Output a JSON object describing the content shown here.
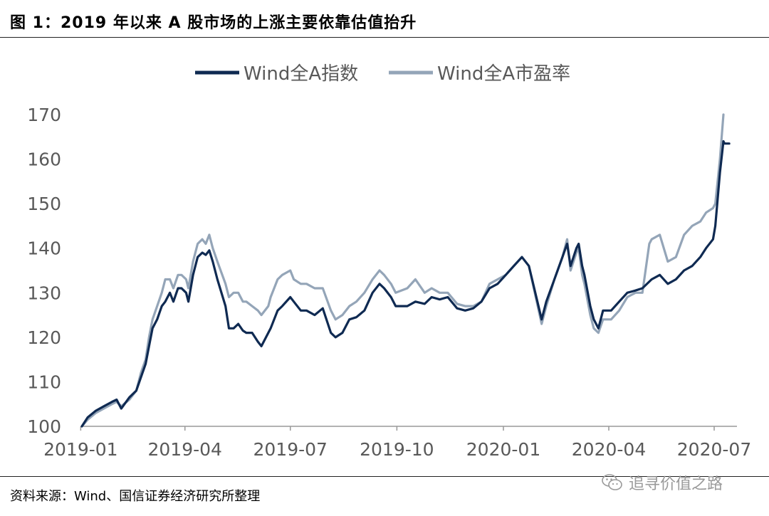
{
  "header": {
    "title": "图 1：2019 年以来 A 股市场的上涨主要依靠估值抬升"
  },
  "footer": {
    "source": "资料来源：Wind、国信证券经济研究所整理",
    "watermark": "追寻价值之路",
    "watermark_icon": "wechat-icon"
  },
  "chart_data": {
    "type": "line",
    "title": "",
    "xlabel": "",
    "ylabel": "",
    "ylim": [
      100,
      170
    ],
    "yticks": [
      "100",
      "110",
      "120",
      "130",
      "140",
      "150",
      "160",
      "170"
    ],
    "xticks": [
      "2019-01",
      "2019-04",
      "2019-07",
      "2019-10",
      "2020-01",
      "2020-04",
      "2020-07"
    ],
    "xlim": [
      "2019-01-02",
      "2020-07-15"
    ],
    "grid": false,
    "legend_position": "top",
    "colors": {
      "wind_index": "#0f2a52",
      "wind_pe": "#94a5b8"
    },
    "series": [
      {
        "name": "Wind全A指数",
        "points": [
          [
            "2019-01-02",
            100
          ],
          [
            "2019-01-07",
            102
          ],
          [
            "2019-01-14",
            103.5
          ],
          [
            "2019-01-21",
            104.5
          ],
          [
            "2019-01-28",
            105.5
          ],
          [
            "2019-02-01",
            106
          ],
          [
            "2019-02-05",
            104
          ],
          [
            "2019-02-12",
            106.5
          ],
          [
            "2019-02-18",
            108
          ],
          [
            "2019-02-22",
            111
          ],
          [
            "2019-02-26",
            114
          ],
          [
            "2019-03-01",
            118
          ],
          [
            "2019-03-04",
            122
          ],
          [
            "2019-03-08",
            124
          ],
          [
            "2019-03-12",
            127
          ],
          [
            "2019-03-15",
            128
          ],
          [
            "2019-03-19",
            130
          ],
          [
            "2019-03-22",
            128
          ],
          [
            "2019-03-26",
            131
          ],
          [
            "2019-03-29",
            131
          ],
          [
            "2019-04-02",
            130
          ],
          [
            "2019-04-04",
            128
          ],
          [
            "2019-04-08",
            134
          ],
          [
            "2019-04-12",
            138
          ],
          [
            "2019-04-16",
            139
          ],
          [
            "2019-04-19",
            138.5
          ],
          [
            "2019-04-22",
            139.5
          ],
          [
            "2019-04-25",
            137
          ],
          [
            "2019-04-29",
            133
          ],
          [
            "2019-05-06",
            127
          ],
          [
            "2019-05-09",
            122
          ],
          [
            "2019-05-13",
            122
          ],
          [
            "2019-05-17",
            123
          ],
          [
            "2019-05-21",
            121.5
          ],
          [
            "2019-05-24",
            121
          ],
          [
            "2019-05-29",
            121
          ],
          [
            "2019-06-03",
            119
          ],
          [
            "2019-06-06",
            118
          ],
          [
            "2019-06-12",
            121
          ],
          [
            "2019-06-14",
            122
          ],
          [
            "2019-06-20",
            126
          ],
          [
            "2019-06-24",
            127
          ],
          [
            "2019-07-01",
            129
          ],
          [
            "2019-07-04",
            128
          ],
          [
            "2019-07-10",
            126
          ],
          [
            "2019-07-15",
            126
          ],
          [
            "2019-07-22",
            125
          ],
          [
            "2019-07-29",
            126.5
          ],
          [
            "2019-08-05",
            121
          ],
          [
            "2019-08-09",
            120
          ],
          [
            "2019-08-15",
            121
          ],
          [
            "2019-08-21",
            124
          ],
          [
            "2019-08-27",
            124.5
          ],
          [
            "2019-09-03",
            126
          ],
          [
            "2019-09-10",
            130
          ],
          [
            "2019-09-16",
            132
          ],
          [
            "2019-09-20",
            131
          ],
          [
            "2019-09-26",
            129
          ],
          [
            "2019-09-30",
            127
          ],
          [
            "2019-10-10",
            127
          ],
          [
            "2019-10-17",
            128
          ],
          [
            "2019-10-25",
            127.5
          ],
          [
            "2019-10-31",
            129
          ],
          [
            "2019-11-07",
            128.5
          ],
          [
            "2019-11-14",
            129
          ],
          [
            "2019-11-22",
            126.5
          ],
          [
            "2019-11-29",
            126
          ],
          [
            "2019-12-06",
            126.5
          ],
          [
            "2019-12-13",
            128
          ],
          [
            "2019-12-20",
            131
          ],
          [
            "2019-12-27",
            132
          ],
          [
            "2020-01-03",
            134
          ],
          [
            "2020-01-10",
            136
          ],
          [
            "2020-01-17",
            138
          ],
          [
            "2020-01-23",
            136
          ],
          [
            "2020-02-03",
            124
          ],
          [
            "2020-02-07",
            128
          ],
          [
            "2020-02-14",
            133
          ],
          [
            "2020-02-21",
            138
          ],
          [
            "2020-02-25",
            141
          ],
          [
            "2020-02-28",
            136
          ],
          [
            "2020-03-04",
            140
          ],
          [
            "2020-03-06",
            141
          ],
          [
            "2020-03-09",
            136
          ],
          [
            "2020-03-11",
            134
          ],
          [
            "2020-03-16",
            127
          ],
          [
            "2020-03-19",
            124
          ],
          [
            "2020-03-23",
            122
          ],
          [
            "2020-03-27",
            126
          ],
          [
            "2020-04-03",
            126
          ],
          [
            "2020-04-10",
            128
          ],
          [
            "2020-04-17",
            130
          ],
          [
            "2020-04-24",
            130.5
          ],
          [
            "2020-04-30",
            131
          ],
          [
            "2020-05-08",
            133
          ],
          [
            "2020-05-15",
            134
          ],
          [
            "2020-05-22",
            132
          ],
          [
            "2020-05-29",
            133
          ],
          [
            "2020-06-05",
            135
          ],
          [
            "2020-06-12",
            136
          ],
          [
            "2020-06-19",
            138
          ],
          [
            "2020-06-24",
            140
          ],
          [
            "2020-06-30",
            142
          ],
          [
            "2020-07-02",
            145
          ],
          [
            "2020-07-06",
            157
          ],
          [
            "2020-07-09",
            164
          ],
          [
            "2020-07-10",
            163.5
          ],
          [
            "2020-07-14",
            163.5
          ]
        ]
      },
      {
        "name": "Wind全A市盈率",
        "points": [
          [
            "2019-01-02",
            100
          ],
          [
            "2019-01-07",
            101.5
          ],
          [
            "2019-01-14",
            103
          ],
          [
            "2019-01-21",
            104
          ],
          [
            "2019-01-28",
            105
          ],
          [
            "2019-02-01",
            105.5
          ],
          [
            "2019-02-05",
            104.5
          ],
          [
            "2019-02-12",
            106
          ],
          [
            "2019-02-18",
            108
          ],
          [
            "2019-02-22",
            112
          ],
          [
            "2019-02-26",
            115
          ],
          [
            "2019-03-01",
            120
          ],
          [
            "2019-03-04",
            124
          ],
          [
            "2019-03-08",
            127
          ],
          [
            "2019-03-12",
            130
          ],
          [
            "2019-03-15",
            133
          ],
          [
            "2019-03-19",
            133
          ],
          [
            "2019-03-22",
            131
          ],
          [
            "2019-03-26",
            134
          ],
          [
            "2019-03-29",
            134
          ],
          [
            "2019-04-02",
            133
          ],
          [
            "2019-04-04",
            131
          ],
          [
            "2019-04-08",
            137
          ],
          [
            "2019-04-12",
            141
          ],
          [
            "2019-04-16",
            142
          ],
          [
            "2019-04-19",
            141
          ],
          [
            "2019-04-22",
            143
          ],
          [
            "2019-04-25",
            140
          ],
          [
            "2019-04-29",
            137
          ],
          [
            "2019-05-06",
            132
          ],
          [
            "2019-05-09",
            129
          ],
          [
            "2019-05-13",
            130
          ],
          [
            "2019-05-17",
            130
          ],
          [
            "2019-05-21",
            128
          ],
          [
            "2019-05-24",
            128
          ],
          [
            "2019-05-29",
            127
          ],
          [
            "2019-06-03",
            126
          ],
          [
            "2019-06-06",
            125
          ],
          [
            "2019-06-12",
            127
          ],
          [
            "2019-06-14",
            129
          ],
          [
            "2019-06-20",
            133
          ],
          [
            "2019-06-24",
            134
          ],
          [
            "2019-07-01",
            135
          ],
          [
            "2019-07-04",
            133
          ],
          [
            "2019-07-10",
            132
          ],
          [
            "2019-07-15",
            132
          ],
          [
            "2019-07-22",
            131
          ],
          [
            "2019-07-29",
            131
          ],
          [
            "2019-08-05",
            126
          ],
          [
            "2019-08-09",
            124
          ],
          [
            "2019-08-15",
            125
          ],
          [
            "2019-08-21",
            127
          ],
          [
            "2019-08-27",
            128
          ],
          [
            "2019-09-03",
            130
          ],
          [
            "2019-09-10",
            133
          ],
          [
            "2019-09-16",
            135
          ],
          [
            "2019-09-20",
            134
          ],
          [
            "2019-09-26",
            132
          ],
          [
            "2019-09-30",
            130
          ],
          [
            "2019-10-10",
            131
          ],
          [
            "2019-10-17",
            133
          ],
          [
            "2019-10-25",
            130
          ],
          [
            "2019-10-31",
            131
          ],
          [
            "2019-11-07",
            130
          ],
          [
            "2019-11-14",
            130
          ],
          [
            "2019-11-22",
            127.5
          ],
          [
            "2019-11-29",
            127
          ],
          [
            "2019-12-06",
            127
          ],
          [
            "2019-12-13",
            128
          ],
          [
            "2019-12-20",
            132
          ],
          [
            "2019-12-27",
            133
          ],
          [
            "2020-01-03",
            134
          ],
          [
            "2020-01-10",
            136
          ],
          [
            "2020-01-17",
            138
          ],
          [
            "2020-01-23",
            136
          ],
          [
            "2020-02-03",
            123
          ],
          [
            "2020-02-07",
            127
          ],
          [
            "2020-02-14",
            133
          ],
          [
            "2020-02-21",
            138
          ],
          [
            "2020-02-25",
            142
          ],
          [
            "2020-02-28",
            135
          ],
          [
            "2020-03-04",
            139
          ],
          [
            "2020-03-06",
            140
          ],
          [
            "2020-03-09",
            134
          ],
          [
            "2020-03-11",
            132
          ],
          [
            "2020-03-16",
            125
          ],
          [
            "2020-03-19",
            122
          ],
          [
            "2020-03-23",
            121
          ],
          [
            "2020-03-27",
            124
          ],
          [
            "2020-04-03",
            124
          ],
          [
            "2020-04-10",
            126
          ],
          [
            "2020-04-17",
            129
          ],
          [
            "2020-04-24",
            130
          ],
          [
            "2020-04-30",
            130
          ],
          [
            "2020-05-06",
            141
          ],
          [
            "2020-05-08",
            142
          ],
          [
            "2020-05-15",
            143
          ],
          [
            "2020-05-22",
            137
          ],
          [
            "2020-05-29",
            138
          ],
          [
            "2020-06-05",
            143
          ],
          [
            "2020-06-12",
            145
          ],
          [
            "2020-06-19",
            146
          ],
          [
            "2020-06-24",
            148
          ],
          [
            "2020-06-30",
            149
          ],
          [
            "2020-07-02",
            150
          ],
          [
            "2020-07-06",
            160
          ],
          [
            "2020-07-09",
            170
          ]
        ]
      }
    ]
  }
}
